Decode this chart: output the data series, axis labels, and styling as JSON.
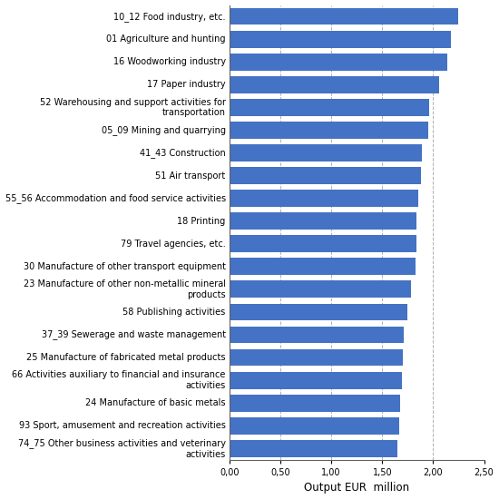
{
  "categories": [
    "74_75 Other business activities and veterinary\nactivities",
    "93 Sport, amusement and recreation activities",
    "24 Manufacture of basic metals",
    "66 Activities auxiliary to financial and insurance\nactivities",
    "25 Manufacture of fabricated metal products",
    "37_39 Sewerage and waste management",
    "58 Publishing activities",
    "23 Manufacture of other non-metallic mineral\nproducts",
    "30 Manufacture of other transport equipment",
    "79 Travel agencies, etc.",
    "18 Printing",
    "55_56 Accommodation and food service activities",
    "51 Air transport",
    "41_43 Construction",
    "05_09 Mining and quarrying",
    "52 Warehousing and support activities for\ntransportation",
    "17 Paper industry",
    "16 Woodworking industry",
    "01 Agriculture and hunting",
    "10_12 Food industry, etc."
  ],
  "values": [
    1.65,
    1.67,
    1.68,
    1.69,
    1.7,
    1.71,
    1.75,
    1.78,
    1.83,
    1.84,
    1.84,
    1.85,
    1.88,
    1.89,
    1.95,
    1.96,
    2.06,
    2.14,
    2.17,
    2.25
  ],
  "bar_color": "#4472C4",
  "xlabel": "Output EUR  million",
  "xlim": [
    0,
    2.5
  ],
  "xticks": [
    0.0,
    0.5,
    1.0,
    1.5,
    2.0,
    2.5
  ],
  "xtick_labels": [
    "0,00",
    "0,50",
    "1,00",
    "1,50",
    "2,00",
    "2,50"
  ],
  "background_color": "#ffffff",
  "grid_color": "#b0b0b0",
  "bar_height": 0.75,
  "label_fontsize": 7.0,
  "xlabel_fontsize": 8.5
}
